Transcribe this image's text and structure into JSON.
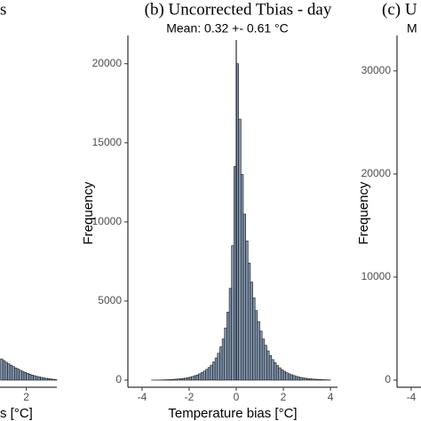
{
  "chart_data": [
    {
      "type": "histogram",
      "title": "s",
      "xlabel": "s [°C]",
      "bins": [
        0.9,
        1.0,
        1.1,
        1.2,
        1.3,
        1.4,
        1.5,
        1.6,
        1.7,
        1.8,
        1.9,
        2.0,
        2.1,
        2.2,
        2.3,
        2.4,
        2.5,
        2.6,
        2.7,
        2.8,
        2.9,
        3.0,
        3.1,
        3.2,
        3.3
      ],
      "counts": [
        1250,
        1150,
        1050,
        960,
        880,
        800,
        720,
        650,
        580,
        520,
        460,
        400,
        350,
        300,
        260,
        220,
        190,
        160,
        130,
        110,
        90,
        70,
        50,
        30
      ],
      "color": "#8094ad",
      "xlim": [
        -0.9,
        3.3
      ],
      "ylim": [
        0,
        20000
      ],
      "xticks": [
        2
      ],
      "yticks": []
    },
    {
      "type": "histogram",
      "title": "(b) Uncorrected Tbias - day",
      "subtitle": "Mean: 0.32 +- 0.61 °C",
      "xlabel": "Temperature bias [°C]",
      "ylabel": "Frequency",
      "bins": [
        -4.0,
        -3.9,
        -3.8,
        -3.7,
        -3.6,
        -3.5,
        -3.4,
        -3.3,
        -3.2,
        -3.1,
        -3.0,
        -2.9,
        -2.8,
        -2.7,
        -2.6,
        -2.5,
        -2.4,
        -2.3,
        -2.2,
        -2.1,
        -2.0,
        -1.9,
        -1.8,
        -1.7,
        -1.6,
        -1.5,
        -1.4,
        -1.3,
        -1.2,
        -1.1,
        -1.0,
        -0.9,
        -0.8,
        -0.7,
        -0.6,
        -0.5,
        -0.4,
        -0.3,
        -0.2,
        -0.1,
        0.0,
        0.1,
        0.2,
        0.3,
        0.4,
        0.5,
        0.6,
        0.7,
        0.8,
        0.9,
        1.0,
        1.1,
        1.2,
        1.3,
        1.4,
        1.5,
        1.6,
        1.7,
        1.8,
        1.9,
        2.0,
        2.1,
        2.2,
        2.3,
        2.4,
        2.5,
        2.6,
        2.7,
        2.8,
        2.9,
        3.0,
        3.1,
        3.2,
        3.3,
        3.4,
        3.5,
        3.6,
        3.7,
        3.8,
        3.9,
        4.0
      ],
      "counts": [
        0,
        0,
        0,
        0,
        5,
        5,
        10,
        10,
        15,
        20,
        25,
        30,
        40,
        50,
        60,
        75,
        90,
        110,
        130,
        160,
        190,
        230,
        280,
        330,
        400,
        480,
        570,
        680,
        800,
        950,
        1150,
        1400,
        1700,
        2100,
        2600,
        3300,
        4300,
        5800,
        8500,
        13500,
        20000,
        16500,
        13000,
        10500,
        8800,
        7400,
        6200,
        5200,
        4400,
        3700,
        3100,
        2600,
        2200,
        1850,
        1550,
        1300,
        1100,
        920,
        780,
        660,
        560,
        470,
        400,
        340,
        290,
        240,
        200,
        170,
        140,
        120,
        100,
        85,
        70,
        60,
        50,
        40,
        30,
        25,
        20,
        15
      ],
      "color": "#8094ad",
      "xlim": [
        -4.3,
        4.3
      ],
      "ylim": [
        0,
        21500
      ],
      "xticks": [
        -4,
        -2,
        0,
        2,
        4
      ],
      "yticks": [
        0,
        5000,
        10000,
        15000,
        20000
      ],
      "zero_line": true
    },
    {
      "type": "histogram",
      "title": "(c) U",
      "subtitle": "M",
      "ylabel": "Frequency",
      "xlim": [
        -4.3,
        4.3
      ],
      "ylim": [
        0,
        33000
      ],
      "xticks": [
        -4
      ],
      "yticks": [
        0,
        10000,
        20000,
        30000
      ]
    }
  ]
}
